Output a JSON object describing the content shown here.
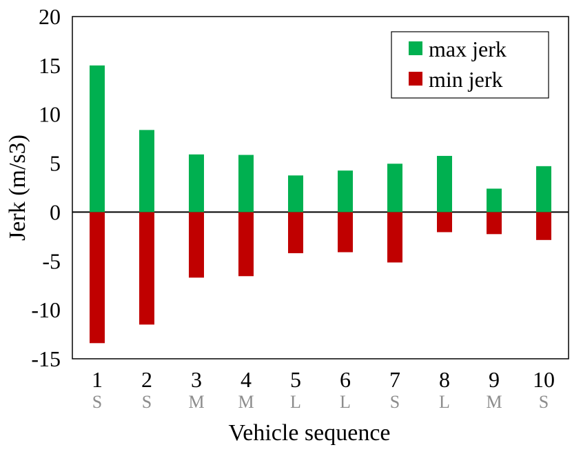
{
  "chart_data": {
    "type": "bar",
    "categories": [
      "1",
      "2",
      "3",
      "4",
      "5",
      "6",
      "7",
      "8",
      "9",
      "10"
    ],
    "size_labels": [
      "S",
      "S",
      "M",
      "M",
      "L",
      "L",
      "S",
      "L",
      "M",
      "S"
    ],
    "series": [
      {
        "name": "max jerk",
        "color": "#00b050",
        "values": [
          15.0,
          8.4,
          5.9,
          5.85,
          3.75,
          4.25,
          4.95,
          5.75,
          2.4,
          4.7
        ]
      },
      {
        "name": "min jerk",
        "color": "#c00000",
        "values": [
          -13.4,
          -11.5,
          -6.7,
          -6.55,
          -4.2,
          -4.1,
          -5.15,
          -2.05,
          -2.25,
          -2.85
        ]
      }
    ],
    "xlabel": "Vehicle sequence",
    "ylabel": "Jerk (m/s3)",
    "ylim": [
      -15,
      20
    ],
    "yticks": [
      "20",
      "15",
      "10",
      "5",
      "0",
      "-5",
      "-10",
      "-15"
    ],
    "ytick_values": [
      20,
      15,
      10,
      5,
      0,
      -5,
      -10,
      -15
    ],
    "legend_position": "top-right",
    "grid": false
  }
}
